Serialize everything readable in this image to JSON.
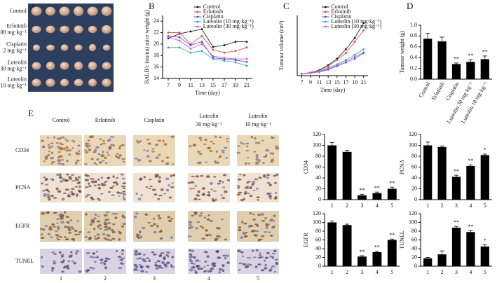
{
  "panel_labels": {
    "a": "A",
    "e": "E"
  },
  "photo_a": {
    "row_labels": [
      [
        "Control"
      ],
      [
        "Erlotinib",
        "100 mg·kg⁻¹"
      ],
      [
        "Cisplatin",
        "2 mg·kg⁻¹"
      ],
      [
        "Luteolin",
        "30 mg·kg⁻¹"
      ],
      [
        "Luteolin",
        "10 mg·kg⁻¹"
      ]
    ]
  },
  "ihc": {
    "column_headers": [
      [
        "Control"
      ],
      [
        "Erlotinib"
      ],
      [
        "Cisplatin"
      ],
      [
        "Luteolin",
        "30 mg·kg⁻¹"
      ],
      [
        "Luteolin",
        "10 mg·kg⁻¹"
      ]
    ],
    "row_labels": [
      "CD34",
      "PCNA",
      "EGFR",
      "TUNEL"
    ],
    "column_numbers": [
      "1",
      "2",
      "3",
      "4",
      "5"
    ]
  },
  "chart_data": [
    {
      "type": "line",
      "label": "B",
      "xlabel": "Time (day)",
      "ylabel": "BALB/c (nu/nu) mice weight (g)",
      "x": [
        7,
        9,
        11,
        13,
        15,
        17,
        19,
        21
      ],
      "xlim": [
        6,
        22
      ],
      "xticks": [
        7,
        9,
        11,
        13,
        15,
        17,
        19,
        21
      ],
      "ylim": [
        14,
        25
      ],
      "yticks": [
        14,
        16,
        18,
        20,
        22,
        24
      ],
      "legend": "top",
      "series": [
        {
          "name": "Control",
          "color": "#111111",
          "values": [
            21,
            21.8,
            22.2,
            22.6,
            19.5,
            19.8,
            20.4,
            20.4
          ]
        },
        {
          "name": "Erlotinib",
          "color": "#e8413b",
          "values": [
            22,
            22,
            20,
            21.4,
            19,
            18.5,
            18.8,
            19.4
          ]
        },
        {
          "name": "Cisplatin",
          "color": "#3d52c9",
          "values": [
            21.4,
            21.2,
            19.8,
            20.4,
            17.6,
            17.4,
            17.2,
            16.9
          ]
        },
        {
          "name": "Luteolin (10 mg·kg⁻¹)",
          "color": "#2aa8a0",
          "values": [
            19.4,
            19.4,
            18.5,
            18.8,
            17.4,
            17.1,
            16.8,
            16.2
          ]
        },
        {
          "name": "Luteolin (30 mg·kg⁻¹)",
          "color": "#d64fd8",
          "values": [
            21.2,
            20.6,
            19.2,
            20,
            17.9,
            17.6,
            17.4,
            17.4
          ]
        }
      ]
    },
    {
      "type": "line",
      "label": "C",
      "xlabel": "Time (day)",
      "ylabel": "Tumour volume (cm³)",
      "x": [
        7,
        9,
        11,
        13,
        15,
        17,
        19,
        21
      ],
      "xlim": [
        6,
        22
      ],
      "xticks": [
        7,
        9,
        11,
        13,
        15,
        17,
        19,
        21
      ],
      "ylim": [
        0,
        1.6
      ],
      "legend": "top",
      "series": [
        {
          "name": "Control",
          "color": "#111111",
          "values": [
            0.05,
            0.08,
            0.15,
            0.28,
            0.45,
            0.7,
            1.0,
            1.4
          ]
        },
        {
          "name": "Erlotinib",
          "color": "#e8413b",
          "values": [
            0.05,
            0.08,
            0.14,
            0.25,
            0.42,
            0.6,
            0.9,
            1.2
          ]
        },
        {
          "name": "Cisplatin",
          "color": "#3d52c9",
          "values": [
            0.05,
            0.07,
            0.1,
            0.16,
            0.25,
            0.35,
            0.45,
            0.6
          ]
        },
        {
          "name": "Luteolin (10 mg·kg⁻¹)",
          "color": "#2aa8a0",
          "values": [
            0.05,
            0.07,
            0.12,
            0.2,
            0.3,
            0.42,
            0.55,
            0.7
          ]
        },
        {
          "name": "Luteolin (30 mg·kg⁻¹)",
          "color": "#d64fd8",
          "values": [
            0.05,
            0.07,
            0.11,
            0.18,
            0.27,
            0.38,
            0.5,
            0.62
          ]
        }
      ]
    },
    {
      "type": "bar",
      "label": "D",
      "ylabel": "Tumour weight (g)",
      "categories": [
        "Control",
        "Erlotinib",
        "Cisplatin",
        "Luteolin 30 mg·kg⁻¹",
        "Luteolin 10 mg·kg⁻¹"
      ],
      "xtick_rotation": -60,
      "color": "#000000",
      "values": [
        0.75,
        0.7,
        0.28,
        0.32,
        0.37
      ],
      "errors": [
        0.1,
        0.08,
        0.02,
        0.04,
        0.06
      ],
      "significance": [
        null,
        null,
        "**",
        "**",
        "**"
      ],
      "ylim": [
        0,
        1.0
      ],
      "yticks": [
        {
          "value": 0,
          "label": "0.0"
        },
        0.2,
        0.4,
        0.6,
        0.8,
        {
          "value": 1,
          "label": "1.0"
        }
      ]
    },
    {
      "type": "bar",
      "ylabel": "CD34",
      "categories": [
        "1",
        "2",
        "3",
        "4",
        "5"
      ],
      "color": "#000000",
      "values": [
        100,
        88,
        8,
        12,
        20
      ],
      "errors": [
        5,
        3,
        2,
        2,
        3
      ],
      "significance": [
        null,
        null,
        "**",
        "**",
        "**"
      ],
      "ylim": [
        0,
        120
      ],
      "yticks": [
        0,
        20,
        40,
        60,
        80,
        100,
        120
      ]
    },
    {
      "type": "bar",
      "ylabel": "PCNA",
      "categories": [
        "1",
        "2",
        "3",
        "4",
        "5"
      ],
      "color": "#000000",
      "values": [
        100,
        97,
        42,
        62,
        82
      ],
      "errors": [
        6,
        2,
        3,
        2,
        2
      ],
      "significance": [
        null,
        null,
        "**",
        "**",
        "*"
      ],
      "ylim": [
        0,
        120
      ],
      "yticks": [
        0,
        20,
        40,
        60,
        80,
        100,
        120
      ]
    },
    {
      "type": "bar",
      "ylabel": "EGFR",
      "categories": [
        "1",
        "2",
        "3",
        "4",
        "5"
      ],
      "color": "#000000",
      "values": [
        100,
        94,
        22,
        32,
        60
      ],
      "errors": [
        3,
        2,
        2,
        2,
        2
      ],
      "significance": [
        null,
        null,
        "**",
        "**",
        "**"
      ],
      "ylim": [
        0,
        120
      ],
      "yticks": [
        0,
        20,
        40,
        60,
        80,
        100,
        120
      ]
    },
    {
      "type": "bar",
      "ylabel": "TUNEL",
      "categories": [
        "1",
        "2",
        "3",
        "4",
        "5"
      ],
      "color": "#000000",
      "values": [
        18,
        27,
        88,
        78,
        45
      ],
      "errors": [
        2,
        8,
        3,
        3,
        4
      ],
      "significance": [
        null,
        null,
        "**",
        "**",
        "*"
      ],
      "ylim": [
        0,
        120
      ],
      "yticks": [
        0,
        20,
        40,
        60,
        80,
        100,
        120
      ]
    }
  ]
}
